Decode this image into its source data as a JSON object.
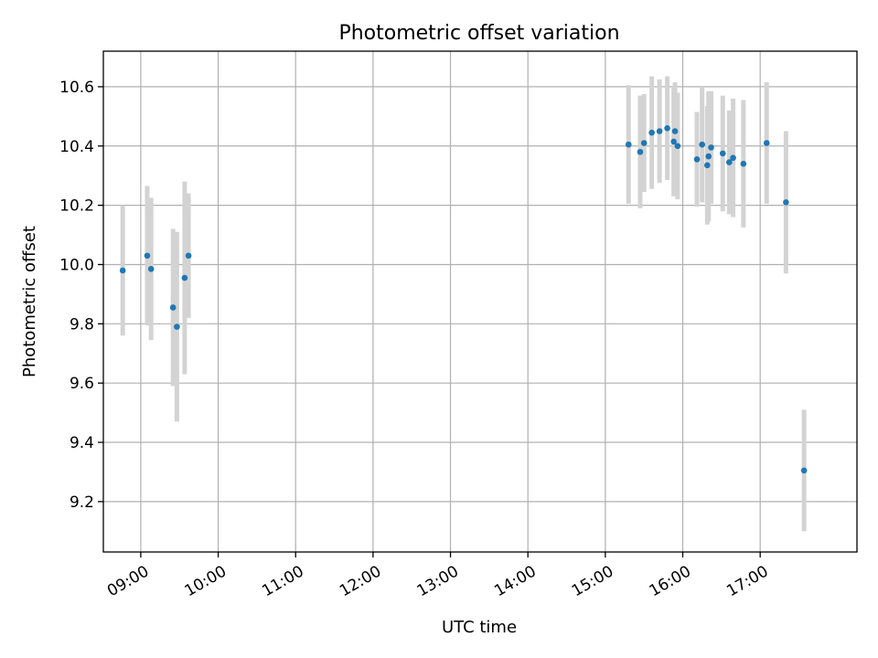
{
  "chart_data": {
    "type": "scatter",
    "title": "Photometric offset variation",
    "xlabel": "UTC time",
    "ylabel": "Photometric offset",
    "x_ticks": [
      "09:00",
      "10:00",
      "11:00",
      "12:00",
      "13:00",
      "14:00",
      "15:00",
      "16:00",
      "17:00"
    ],
    "y_ticks": [
      "9.2",
      "9.4",
      "9.6",
      "9.8",
      "10.0",
      "10.2",
      "10.4",
      "10.6"
    ],
    "xlim": [
      "08:31",
      "18:15"
    ],
    "ylim": [
      9.03,
      10.72
    ],
    "grid": true,
    "marker_color": "#1f77b4",
    "errorbar_color": "#d3d3d3",
    "points": [
      {
        "time": "08:46",
        "value": 9.98,
        "err": 0.22
      },
      {
        "time": "09:05",
        "value": 10.03,
        "err": 0.235
      },
      {
        "time": "09:08",
        "value": 9.985,
        "err": 0.24
      },
      {
        "time": "09:25",
        "value": 9.855,
        "err": 0.265
      },
      {
        "time": "09:28",
        "value": 9.79,
        "err": 0.32
      },
      {
        "time": "09:34",
        "value": 9.955,
        "err": 0.325
      },
      {
        "time": "09:37",
        "value": 10.03,
        "err": 0.21
      },
      {
        "time": "15:18",
        "value": 10.405,
        "err": 0.2
      },
      {
        "time": "15:27",
        "value": 10.38,
        "err": 0.19
      },
      {
        "time": "15:30",
        "value": 10.41,
        "err": 0.165
      },
      {
        "time": "15:36",
        "value": 10.445,
        "err": 0.19
      },
      {
        "time": "15:42",
        "value": 10.45,
        "err": 0.175
      },
      {
        "time": "15:48",
        "value": 10.46,
        "err": 0.175
      },
      {
        "time": "15:53",
        "value": 10.415,
        "err": 0.185
      },
      {
        "time": "15:54",
        "value": 10.45,
        "err": 0.165
      },
      {
        "time": "15:56",
        "value": 10.4,
        "err": 0.18
      },
      {
        "time": "16:11",
        "value": 10.355,
        "err": 0.16
      },
      {
        "time": "16:15",
        "value": 10.405,
        "err": 0.195
      },
      {
        "time": "16:19",
        "value": 10.335,
        "err": 0.2
      },
      {
        "time": "16:20",
        "value": 10.365,
        "err": 0.22
      },
      {
        "time": "16:22",
        "value": 10.395,
        "err": 0.19
      },
      {
        "time": "16:31",
        "value": 10.375,
        "err": 0.195
      },
      {
        "time": "16:36",
        "value": 10.345,
        "err": 0.175
      },
      {
        "time": "16:39",
        "value": 10.36,
        "err": 0.2
      },
      {
        "time": "16:47",
        "value": 10.34,
        "err": 0.215
      },
      {
        "time": "17:05",
        "value": 10.41,
        "err": 0.205
      },
      {
        "time": "17:20",
        "value": 10.21,
        "err": 0.24
      },
      {
        "time": "17:34",
        "value": 9.305,
        "err": 0.205
      }
    ]
  }
}
